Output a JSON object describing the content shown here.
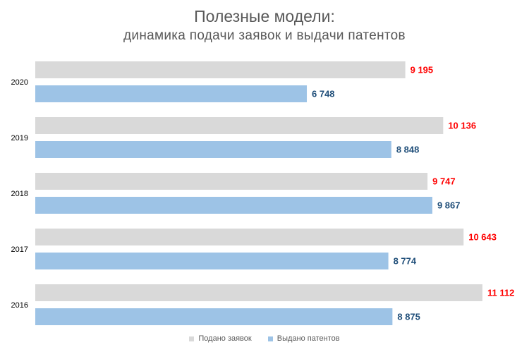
{
  "title": "Полезные модели:",
  "subtitle": "динамика подачи заявок и выдачи патентов",
  "chart_data": {
    "type": "bar",
    "orientation": "horizontal",
    "categories": [
      "2020",
      "2019",
      "2018",
      "2017",
      "2016"
    ],
    "series": [
      {
        "name": "Подано заявок",
        "values": [
          9195,
          10136,
          9747,
          10643,
          11112
        ],
        "labels": [
          "9 195",
          "10 136",
          "9 747",
          "10 643",
          "11 112"
        ],
        "color": "#d9d9d9",
        "label_color": "#ff0000"
      },
      {
        "name": "Выдано патентов",
        "values": [
          6748,
          8848,
          9867,
          8774,
          8875
        ],
        "labels": [
          "6 748",
          "8 848",
          "9 867",
          "8 774",
          "8 875"
        ],
        "color": "#9dc3e6",
        "label_color": "#1f4e79"
      }
    ],
    "xlim": [
      0,
      12000
    ],
    "grid": false,
    "legend_position": "bottom"
  }
}
